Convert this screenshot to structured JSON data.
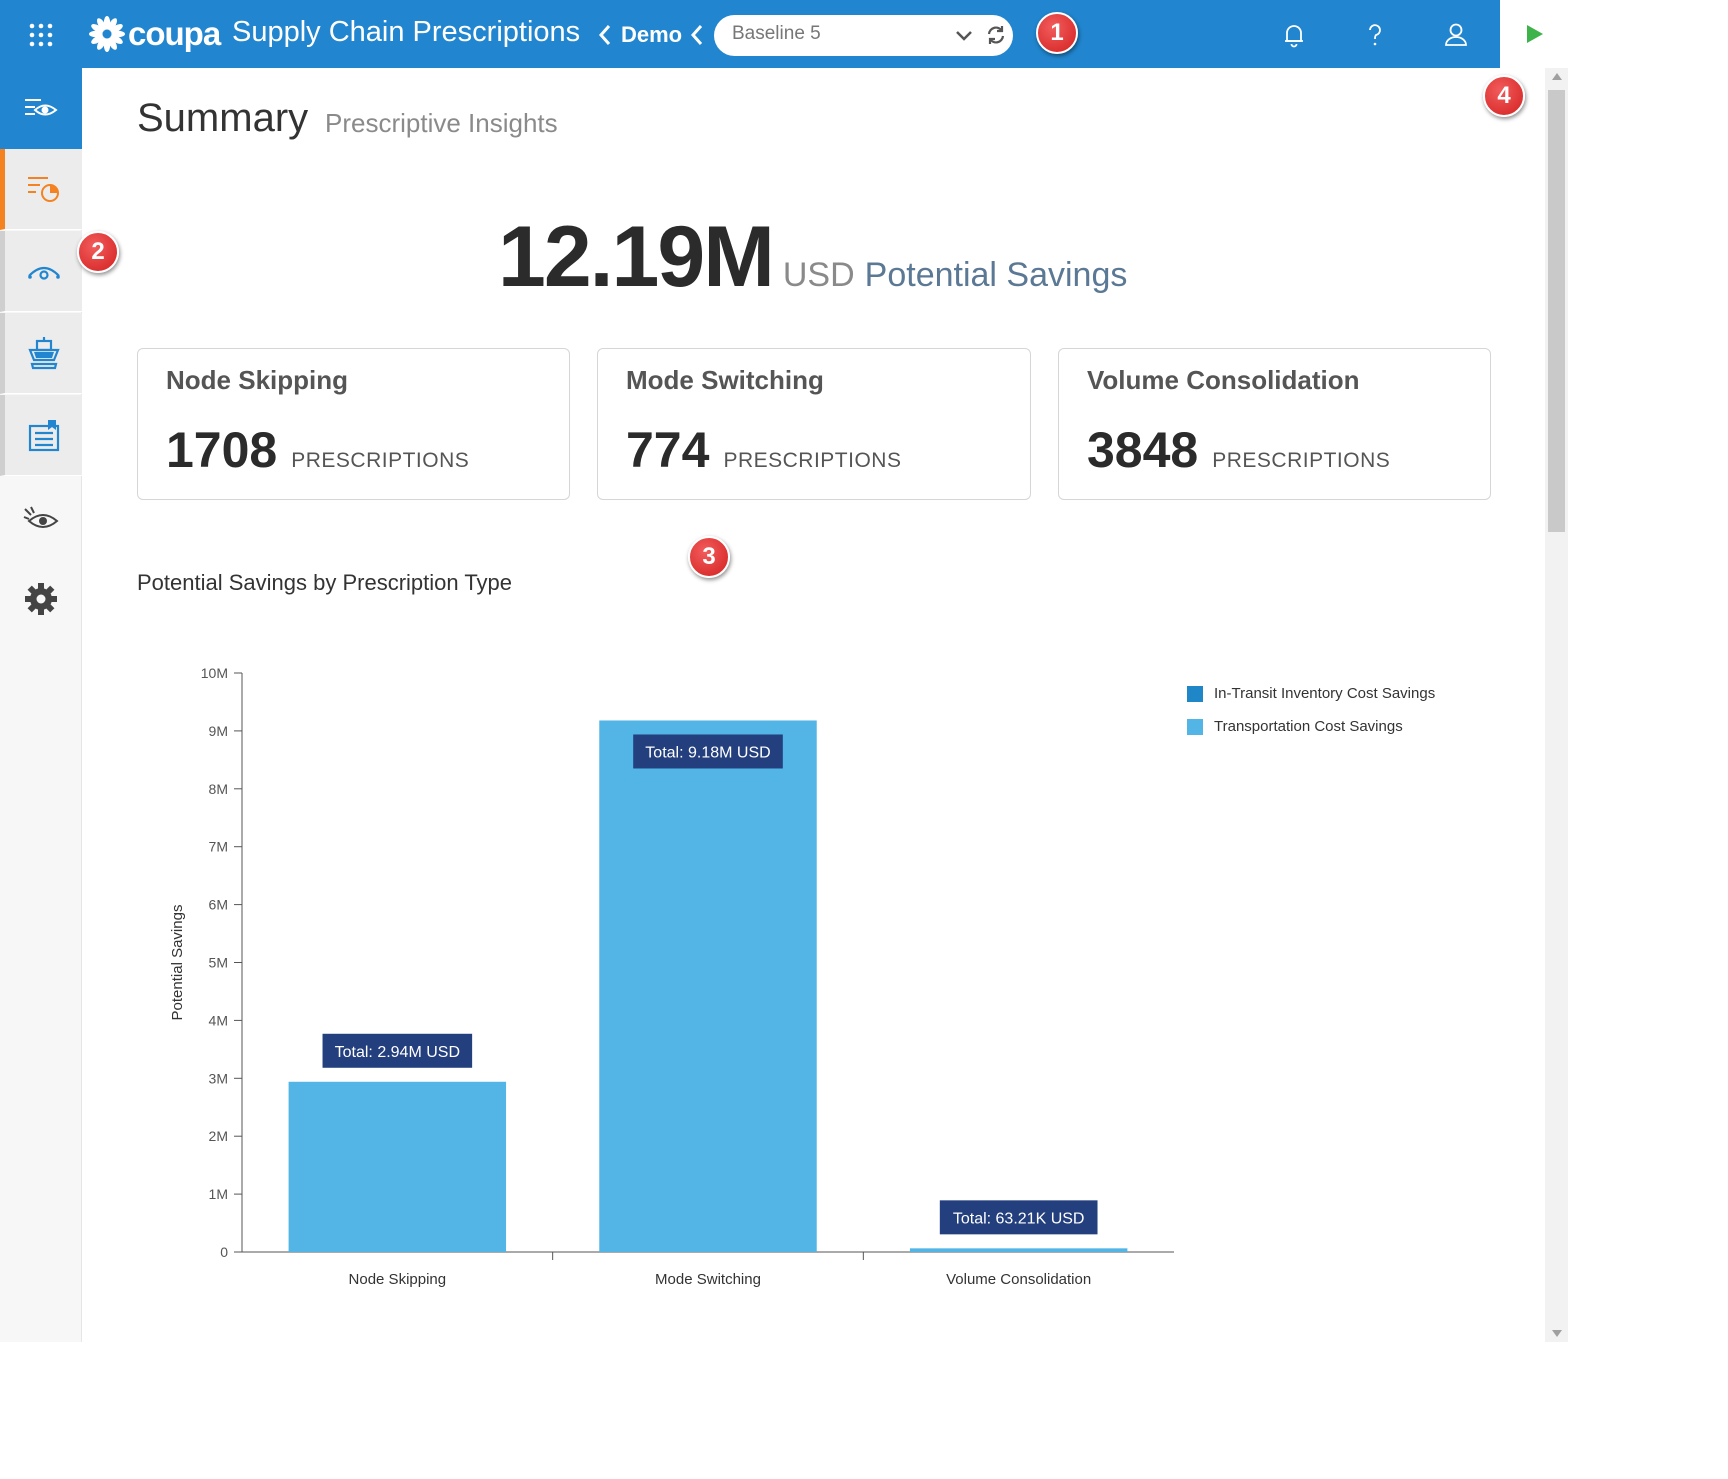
{
  "topbar": {
    "apps_icon": "apps-grid-icon",
    "brand": "coupa",
    "app_title": "Supply Chain Prescriptions",
    "breadcrumb": "Demo",
    "scenario_value": "Baseline 5",
    "icons": [
      "bell-icon",
      "help-icon",
      "user-icon",
      "play-icon"
    ],
    "bg_color": "#2186cf",
    "play_color": "#3eb34a"
  },
  "callouts": [
    "1",
    "2",
    "3",
    "4"
  ],
  "sidebar": {
    "items": [
      "overview-icon",
      "prescriptions-icon",
      "visibility-icon",
      "shipping-icon",
      "reports-icon",
      "insights-icon",
      "settings-icon"
    ],
    "active": "prescriptions-icon",
    "active_color": "#f58220"
  },
  "page": {
    "title": "Summary",
    "subtitle": "Prescriptive Insights"
  },
  "hero": {
    "value": "12.19M",
    "unit": "USD",
    "label": "Potential Savings"
  },
  "cards": [
    {
      "title": "Node Skipping",
      "value": "1708",
      "unit": "PRESCRIPTIONS"
    },
    {
      "title": "Mode Switching",
      "value": "774",
      "unit": "PRESCRIPTIONS"
    },
    {
      "title": "Volume Consolidation",
      "value": "3848",
      "unit": "PRESCRIPTIONS"
    }
  ],
  "chart_data": {
    "type": "bar",
    "title": "Potential Savings by Prescription Type",
    "categories": [
      "Node Skipping",
      "Mode Switching",
      "Volume Consolidation"
    ],
    "series": [
      {
        "name": "In-Transit Inventory Cost Savings",
        "values": [
          0,
          0,
          0
        ],
        "color": "#1f86c8"
      },
      {
        "name": "Transportation Cost Savings",
        "values": [
          2940000,
          9180000,
          63210
        ],
        "color": "#52b5e6"
      }
    ],
    "totals_labels": [
      "Total: 2.94M USD",
      "Total: 9.18M USD",
      "Total: 63.21K USD"
    ],
    "ylabel": "Potential Savings",
    "xlabel": "",
    "ylim": [
      0,
      10000000
    ],
    "yticks": [
      0,
      1000000,
      2000000,
      3000000,
      4000000,
      5000000,
      6000000,
      7000000,
      8000000,
      9000000,
      10000000
    ],
    "ytick_labels": [
      "0",
      "1M",
      "2M",
      "3M",
      "4M",
      "5M",
      "6M",
      "7M",
      "8M",
      "9M",
      "10M"
    ],
    "legend_position": "top-right",
    "label_bg": "#233f7d"
  }
}
